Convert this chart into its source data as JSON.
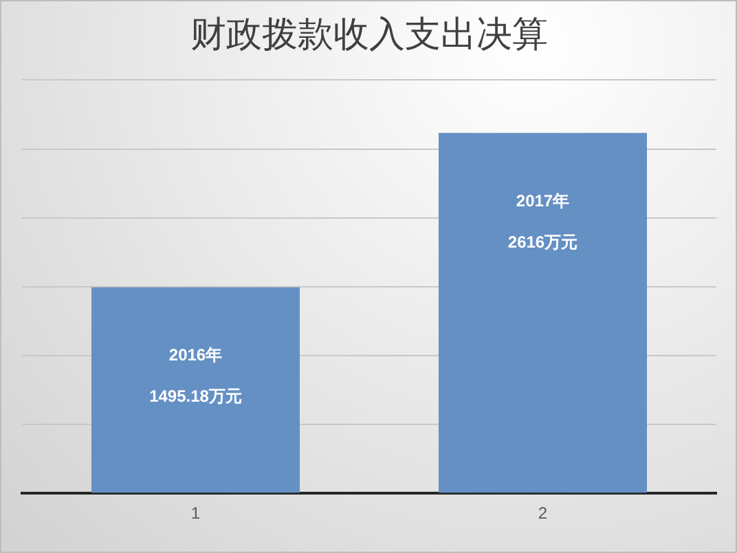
{
  "chart_data": {
    "type": "bar",
    "title": "财政拨款收入支出决算",
    "categories": [
      "1",
      "2"
    ],
    "values": [
      1495.18,
      2616
    ],
    "color": "#6590c4",
    "tick_labels": "x",
    "grid": "y",
    "legend": false,
    "value_labels": [
      "1495.18万元",
      "2616万元"
    ],
    "annotations": [
      "2016年",
      "2017年"
    ]
  }
}
